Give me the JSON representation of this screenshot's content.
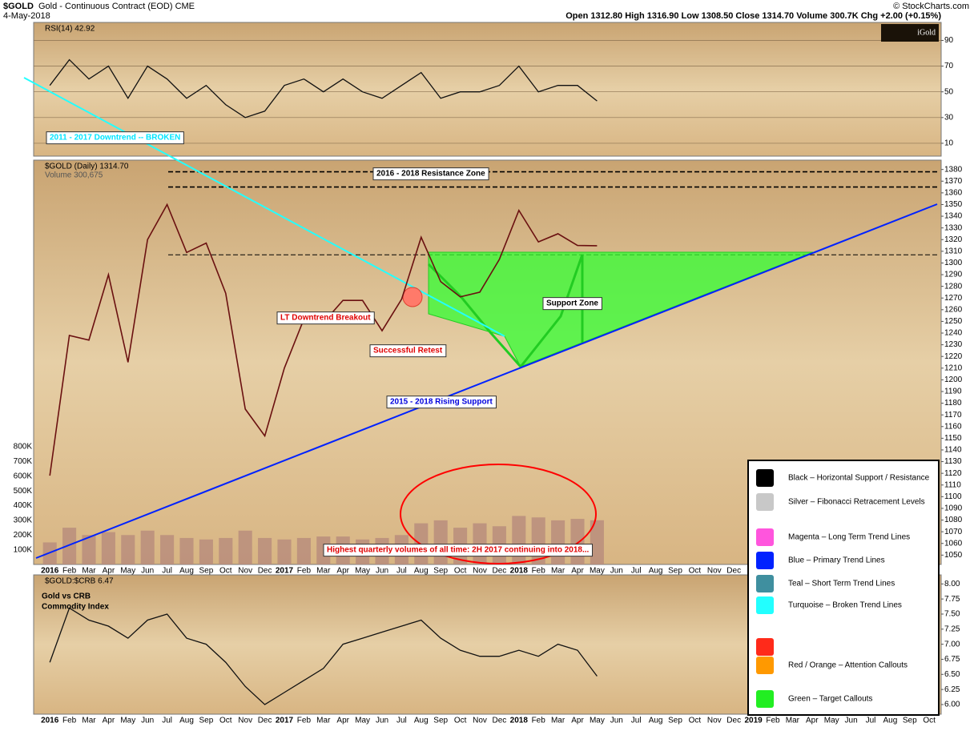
{
  "header": {
    "symbol": "$GOLD",
    "subtitle": "Gold - Continuous Contract (EOD) CME",
    "date": "4-May-2018",
    "ohlc": "Open 1312.80  High 1316.90  Low 1308.50  Close 1314.70  Volume 300.7K  Chg +2.00 (+0.15%)",
    "source": "© StockCharts.com",
    "brand": "iGold"
  },
  "chart_data": [
    {
      "type": "line",
      "label": "RSI(14) 42.92",
      "color": "#111111",
      "values": [
        55,
        75,
        60,
        70,
        45,
        70,
        60,
        45,
        55,
        40,
        30,
        35,
        55,
        60,
        50,
        60,
        50,
        45,
        55,
        65,
        45,
        50,
        50,
        55,
        70,
        50,
        55,
        55,
        42.92,
        null,
        null,
        null,
        null,
        null,
        null,
        null
      ],
      "ylim": [
        0,
        104
      ],
      "yticks": [
        10,
        30,
        50,
        70,
        90
      ],
      "grid": true
    },
    {
      "type": "line",
      "label": "$GOLD (Daily) 1314.70",
      "categories": [
        "2016",
        "Feb",
        "Mar",
        "Apr",
        "May",
        "Jun",
        "Jul",
        "Aug",
        "Sep",
        "Oct",
        "Nov",
        "Dec",
        "2017",
        "Feb",
        "Mar",
        "Apr",
        "May",
        "Jun",
        "Jul",
        "Aug",
        "Sep",
        "Oct",
        "Nov",
        "Dec",
        "2018",
        "Feb",
        "Mar",
        "Apr",
        "May",
        "Jun",
        "Jul",
        "Aug",
        "Sep",
        "Oct",
        "Nov",
        "Dec"
      ],
      "series": [
        {
          "name": "$GOLD (Daily) 1314.70",
          "color": "#6a1010",
          "values": [
            1118,
            1238,
            1234,
            1290,
            1215,
            1320,
            1350,
            1309,
            1317,
            1274,
            1175,
            1152,
            1210,
            1252,
            1249,
            1268,
            1268,
            1242,
            1269,
            1322,
            1284,
            1271,
            1275,
            1303,
            1345,
            1318,
            1325,
            1315,
            1314.7,
            null,
            null,
            null,
            null,
            null,
            null,
            null
          ]
        },
        {
          "name": "Volume 300,675",
          "color": "#b78b7c",
          "axis": "y2",
          "values": [
            150000,
            250000,
            200000,
            220000,
            200000,
            230000,
            200000,
            180000,
            170000,
            180000,
            230000,
            180000,
            170000,
            180000,
            190000,
            190000,
            170000,
            180000,
            200000,
            280000,
            300000,
            250000,
            280000,
            260000,
            330000,
            320000,
            300000,
            310000,
            300675,
            null,
            null,
            null,
            null,
            null,
            null,
            null
          ]
        }
      ],
      "ylim": [
        1042,
        1388
      ],
      "yticks": [
        1050,
        1060,
        1070,
        1080,
        1090,
        1100,
        1110,
        1120,
        1130,
        1140,
        1150,
        1160,
        1170,
        1180,
        1190,
        1200,
        1210,
        1220,
        1230,
        1240,
        1250,
        1260,
        1270,
        1280,
        1290,
        1300,
        1310,
        1320,
        1330,
        1340,
        1350,
        1360,
        1370,
        1380
      ],
      "y2lim": [
        0,
        2750000
      ],
      "y2ticks": [
        {
          "value": 100000,
          "label": "100K"
        },
        {
          "value": 200000,
          "label": "200K"
        },
        {
          "value": 300000,
          "label": "300K"
        },
        {
          "value": 400000,
          "label": "400K"
        },
        {
          "value": 500000,
          "label": "500K"
        },
        {
          "value": 600000,
          "label": "600K"
        },
        {
          "value": 700000,
          "label": "700K"
        },
        {
          "value": 800000,
          "label": "800K"
        }
      ],
      "levels": [
        1378,
        1365,
        1307
      ],
      "grid": false
    },
    {
      "type": "line",
      "label": "$GOLD:$CRB 6.47",
      "note": [
        "Gold vs CRB",
        "Commodity Index"
      ],
      "color": "#111111",
      "categories": [
        "2016",
        "Feb",
        "Mar",
        "Apr",
        "May",
        "Jun",
        "Jul",
        "Aug",
        "Sep",
        "Oct",
        "Nov",
        "Dec",
        "2017",
        "Feb",
        "Mar",
        "Apr",
        "May",
        "Jun",
        "Jul",
        "Aug",
        "Sep",
        "Oct",
        "Nov",
        "Dec",
        "2018",
        "Feb",
        "Mar",
        "Apr",
        "May",
        "Jun",
        "Jul",
        "Aug",
        "Sep",
        "Oct",
        "Nov",
        "Dec",
        "2019",
        "Feb",
        "Mar",
        "Apr",
        "May",
        "Jun",
        "Jul",
        "Aug",
        "Sep",
        "Oct"
      ],
      "values": [
        6.7,
        7.6,
        7.4,
        7.3,
        7.1,
        7.4,
        7.5,
        7.1,
        7.0,
        6.7,
        6.3,
        6.0,
        6.2,
        6.4,
        6.6,
        7.0,
        7.1,
        7.2,
        7.3,
        7.4,
        7.1,
        6.9,
        6.8,
        6.8,
        6.9,
        6.8,
        7.0,
        6.9,
        6.47,
        null,
        null,
        null,
        null,
        null,
        null,
        null,
        null,
        null,
        null,
        null,
        null,
        null,
        null,
        null,
        null,
        null
      ],
      "ylim": [
        5.84,
        8.15
      ],
      "yticks": [
        {
          "value": 6,
          "label": "6.00"
        },
        {
          "value": 6.25,
          "label": "6.25"
        },
        {
          "value": 6.5,
          "label": "6.50"
        },
        {
          "value": 6.75,
          "label": "6.75"
        },
        {
          "value": 7,
          "label": "7.00"
        },
        {
          "value": 7.25,
          "label": "7.25"
        },
        {
          "value": 7.5,
          "label": "7.50"
        },
        {
          "value": 7.75,
          "label": "7.75"
        },
        {
          "value": 8,
          "label": "8.00"
        }
      ],
      "grid": false
    }
  ],
  "annotations": [
    {
      "text": "2011 - 2017 Downtrend -- BROKEN",
      "color": "#00e5ff"
    },
    {
      "text": "2016 - 2018 Resistance Zone",
      "color": "#000000"
    },
    {
      "text": "LT Downtrend Breakout",
      "color": "#e00000"
    },
    {
      "text": "Successful Retest",
      "color": "#e00000"
    },
    {
      "text": "Support Zone",
      "color": "#000000"
    },
    {
      "text": "2015 - 2018 Rising Support",
      "color": "#0000dd"
    },
    {
      "text": "Highest quarterly volumes of all time: 2H 2017 continuing into 2018...",
      "color": "#e00000"
    }
  ],
  "legend": [
    {
      "text": "Black – Horizontal Support / Resistance",
      "colors": [
        "#000000"
      ]
    },
    {
      "text": "Silver – Fibonacci Retracement Levels",
      "colors": [
        "#c8c8c8"
      ]
    },
    {
      "text": "Magenta – Long Term Trend Lines",
      "colors": [
        "#ff55dd"
      ]
    },
    {
      "text": "Blue – Primary Trend Lines",
      "colors": [
        "#0022ff"
      ]
    },
    {
      "text": "Teal – Short Term Trend Lines",
      "colors": [
        "#3f8f9f"
      ]
    },
    {
      "text": "Turquoise – Broken Trend Lines",
      "colors": [
        "#22ffff"
      ]
    },
    {
      "text": "Red / Orange – Attention Callouts",
      "colors": [
        "#ff2a1a",
        "#ff9900"
      ]
    },
    {
      "text": "Green – Target Callouts",
      "colors": [
        "#22ee22"
      ]
    }
  ]
}
